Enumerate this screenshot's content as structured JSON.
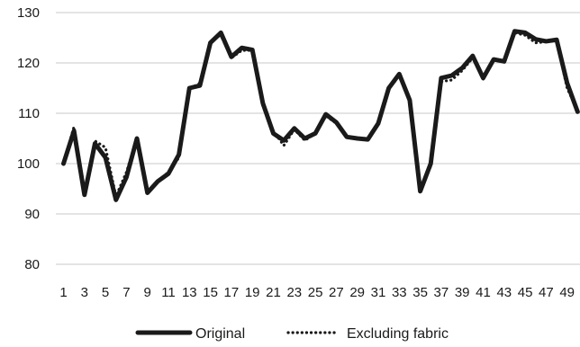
{
  "chart_data": {
    "type": "line",
    "title": "",
    "xlabel": "",
    "ylabel": "",
    "x": [
      1,
      2,
      3,
      4,
      5,
      6,
      7,
      8,
      9,
      10,
      11,
      12,
      13,
      14,
      15,
      16,
      17,
      18,
      19,
      20,
      21,
      22,
      23,
      24,
      25,
      26,
      27,
      28,
      29,
      30,
      31,
      32,
      33,
      34,
      35,
      36,
      37,
      38,
      39,
      40,
      41,
      42,
      43,
      44,
      45,
      46,
      47,
      48,
      49,
      50
    ],
    "x_tick_labels": [
      "1",
      "3",
      "5",
      "7",
      "9",
      "11",
      "13",
      "15",
      "17",
      "19",
      "21",
      "23",
      "25",
      "27",
      "29",
      "31",
      "33",
      "35",
      "37",
      "39",
      "41",
      "43",
      "45",
      "47",
      "49"
    ],
    "ylim": [
      80,
      130
    ],
    "y_ticks": [
      80,
      90,
      100,
      110,
      120,
      130
    ],
    "grid": true,
    "legend_position": "bottom",
    "series": [
      {
        "name": "Original",
        "style": "solid",
        "color": "#1a1a1a",
        "values": [
          100,
          106.5,
          93.8,
          104,
          101.2,
          92.8,
          97.3,
          105,
          94.2,
          96.5,
          98,
          101.8,
          115,
          115.5,
          124,
          126,
          121.2,
          123,
          122.6,
          112,
          106,
          104.6,
          107,
          105,
          106,
          109.8,
          108.2,
          105.3,
          105,
          104.8,
          108,
          115,
          117.8,
          112.6,
          94.5,
          100,
          117,
          117.5,
          119,
          121.4,
          117,
          120.7,
          120.3,
          126.3,
          126,
          124.7,
          124.3,
          124.6,
          116,
          110.3
        ]
      },
      {
        "name": "Excluding fabric",
        "style": "dotted",
        "color": "#1a1a1a",
        "values": [
          100,
          107.3,
          94.5,
          104.5,
          103.2,
          93.5,
          98.3,
          104.9,
          94.5,
          96.5,
          98.3,
          101.2,
          114.8,
          116,
          124.2,
          125.5,
          121,
          122.5,
          122.5,
          111.5,
          106.5,
          103.6,
          106.8,
          104.6,
          106,
          109.5,
          108,
          105.3,
          105,
          104.8,
          108,
          114.8,
          117.5,
          112.5,
          95,
          99.5,
          116.3,
          116.6,
          118.5,
          121,
          116.8,
          120.6,
          120.3,
          126,
          125.5,
          124,
          124.2,
          124.5,
          115,
          110.5
        ]
      }
    ]
  }
}
